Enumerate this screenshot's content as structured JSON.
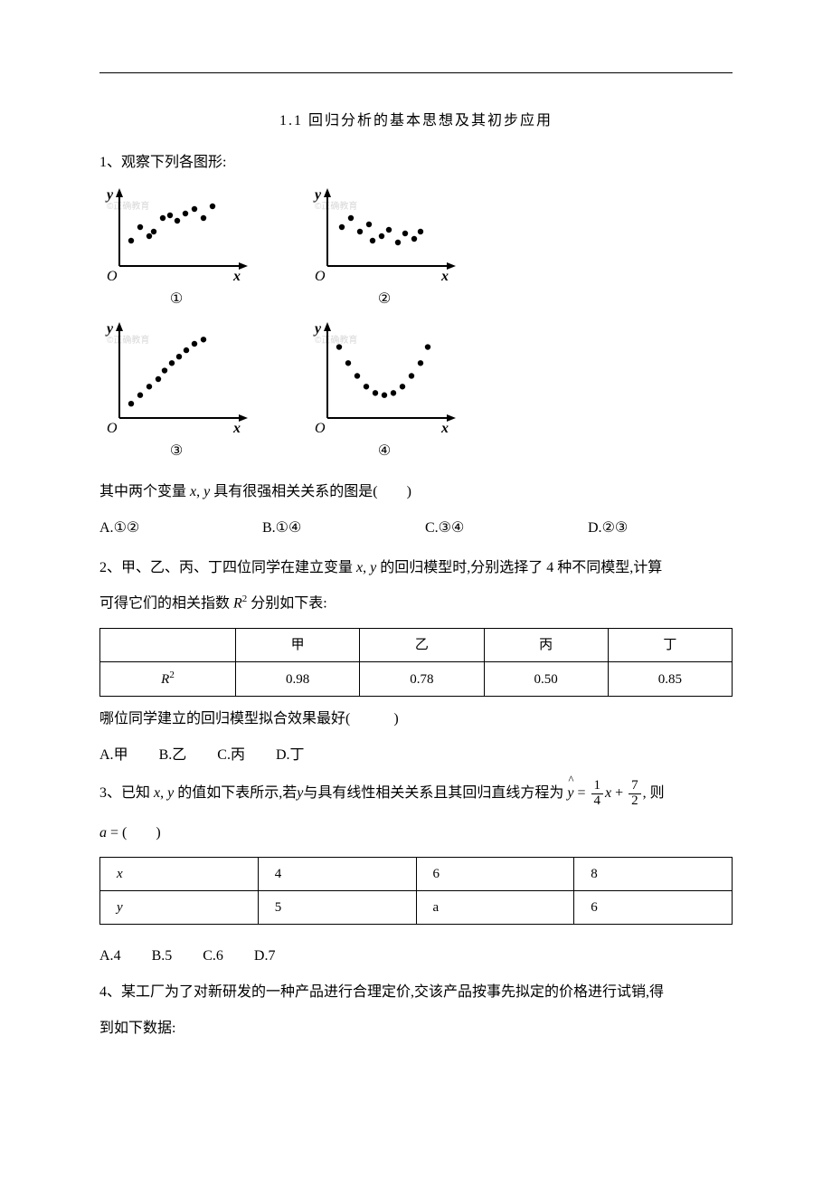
{
  "title": "1.1  回归分析的基本思想及其初步应用",
  "q1": {
    "prompt": "1、观察下列各图形:",
    "charts": [
      {
        "label": "①",
        "points": [
          [
            35,
            60
          ],
          [
            45,
            45
          ],
          [
            55,
            55
          ],
          [
            60,
            50
          ],
          [
            70,
            35
          ],
          [
            78,
            32
          ],
          [
            86,
            38
          ],
          [
            95,
            30
          ],
          [
            105,
            25
          ],
          [
            115,
            35
          ],
          [
            125,
            22
          ]
        ],
        "watermark": "©正确教育"
      },
      {
        "label": "②",
        "points": [
          [
            38,
            45
          ],
          [
            48,
            35
          ],
          [
            58,
            50
          ],
          [
            68,
            42
          ],
          [
            72,
            60
          ],
          [
            82,
            55
          ],
          [
            90,
            48
          ],
          [
            100,
            62
          ],
          [
            108,
            52
          ],
          [
            118,
            58
          ],
          [
            125,
            50
          ]
        ],
        "watermark": "©正确教育"
      },
      {
        "label": "③",
        "points": [
          [
            35,
            78
          ],
          [
            45,
            70
          ],
          [
            55,
            62
          ],
          [
            65,
            55
          ],
          [
            72,
            47
          ],
          [
            80,
            40
          ],
          [
            88,
            34
          ],
          [
            96,
            28
          ],
          [
            105,
            22
          ],
          [
            115,
            18
          ]
        ],
        "watermark": "©正确教育"
      },
      {
        "label": "④",
        "points": [
          [
            35,
            25
          ],
          [
            45,
            40
          ],
          [
            55,
            52
          ],
          [
            65,
            62
          ],
          [
            75,
            68
          ],
          [
            85,
            70
          ],
          [
            95,
            68
          ],
          [
            105,
            62
          ],
          [
            115,
            52
          ],
          [
            125,
            40
          ],
          [
            133,
            25
          ]
        ],
        "watermark": "©正确教育"
      }
    ],
    "question": "其中两个变量 x,  y 具有很强相关关系的图是(　　)",
    "options": {
      "A": "①②",
      "B": "①④",
      "C": "③④",
      "D": "②③"
    }
  },
  "q2": {
    "line1": "2、甲、乙、丙、丁四位同学在建立变量 x, y 的回归模型时,分别选择了 4 种不同模型,计算",
    "line2": "可得它们的相关指数 R² 分别如下表:",
    "table": {
      "headers": [
        "",
        "甲",
        "乙",
        "丙",
        "丁"
      ],
      "row_label": "R²",
      "values": [
        "0.98",
        "0.78",
        "0.50",
        "0.85"
      ]
    },
    "question": "哪位同学建立的回归模型拟合效果最好(　　　)",
    "options": {
      "A": "甲",
      "B": "乙",
      "C": "丙",
      "D": "丁"
    }
  },
  "q3": {
    "line1_pre": "3、已知 x, y 的值如下表所示,若y与具有线性相关关系且其回归直线方程为 ",
    "eq": {
      "yhat": "y",
      "frac1_num": "1",
      "frac1_den": "4",
      "x": "x",
      "frac2_num": "7",
      "frac2_den": "2"
    },
    "line1_post": ", 则",
    "line2": "a = (　　)",
    "table": {
      "rows": [
        [
          "x",
          "4",
          "6",
          "8"
        ],
        [
          "y",
          "5",
          "a",
          "6"
        ]
      ]
    },
    "options": {
      "A": "4",
      "B": "5",
      "C": "6",
      "D": "7"
    }
  },
  "q4": {
    "line1": "4、某工厂为了对新研发的一种产品进行合理定价,交该产品按事先拟定的价格进行试销,得",
    "line2": "到如下数据:"
  },
  "axis": {
    "x_label": "x",
    "y_label": "y",
    "origin": "O"
  },
  "colors": {
    "text": "#000000",
    "bg": "#ffffff",
    "watermark": "#d8d8d8",
    "point": "#000000",
    "axis": "#000000"
  }
}
